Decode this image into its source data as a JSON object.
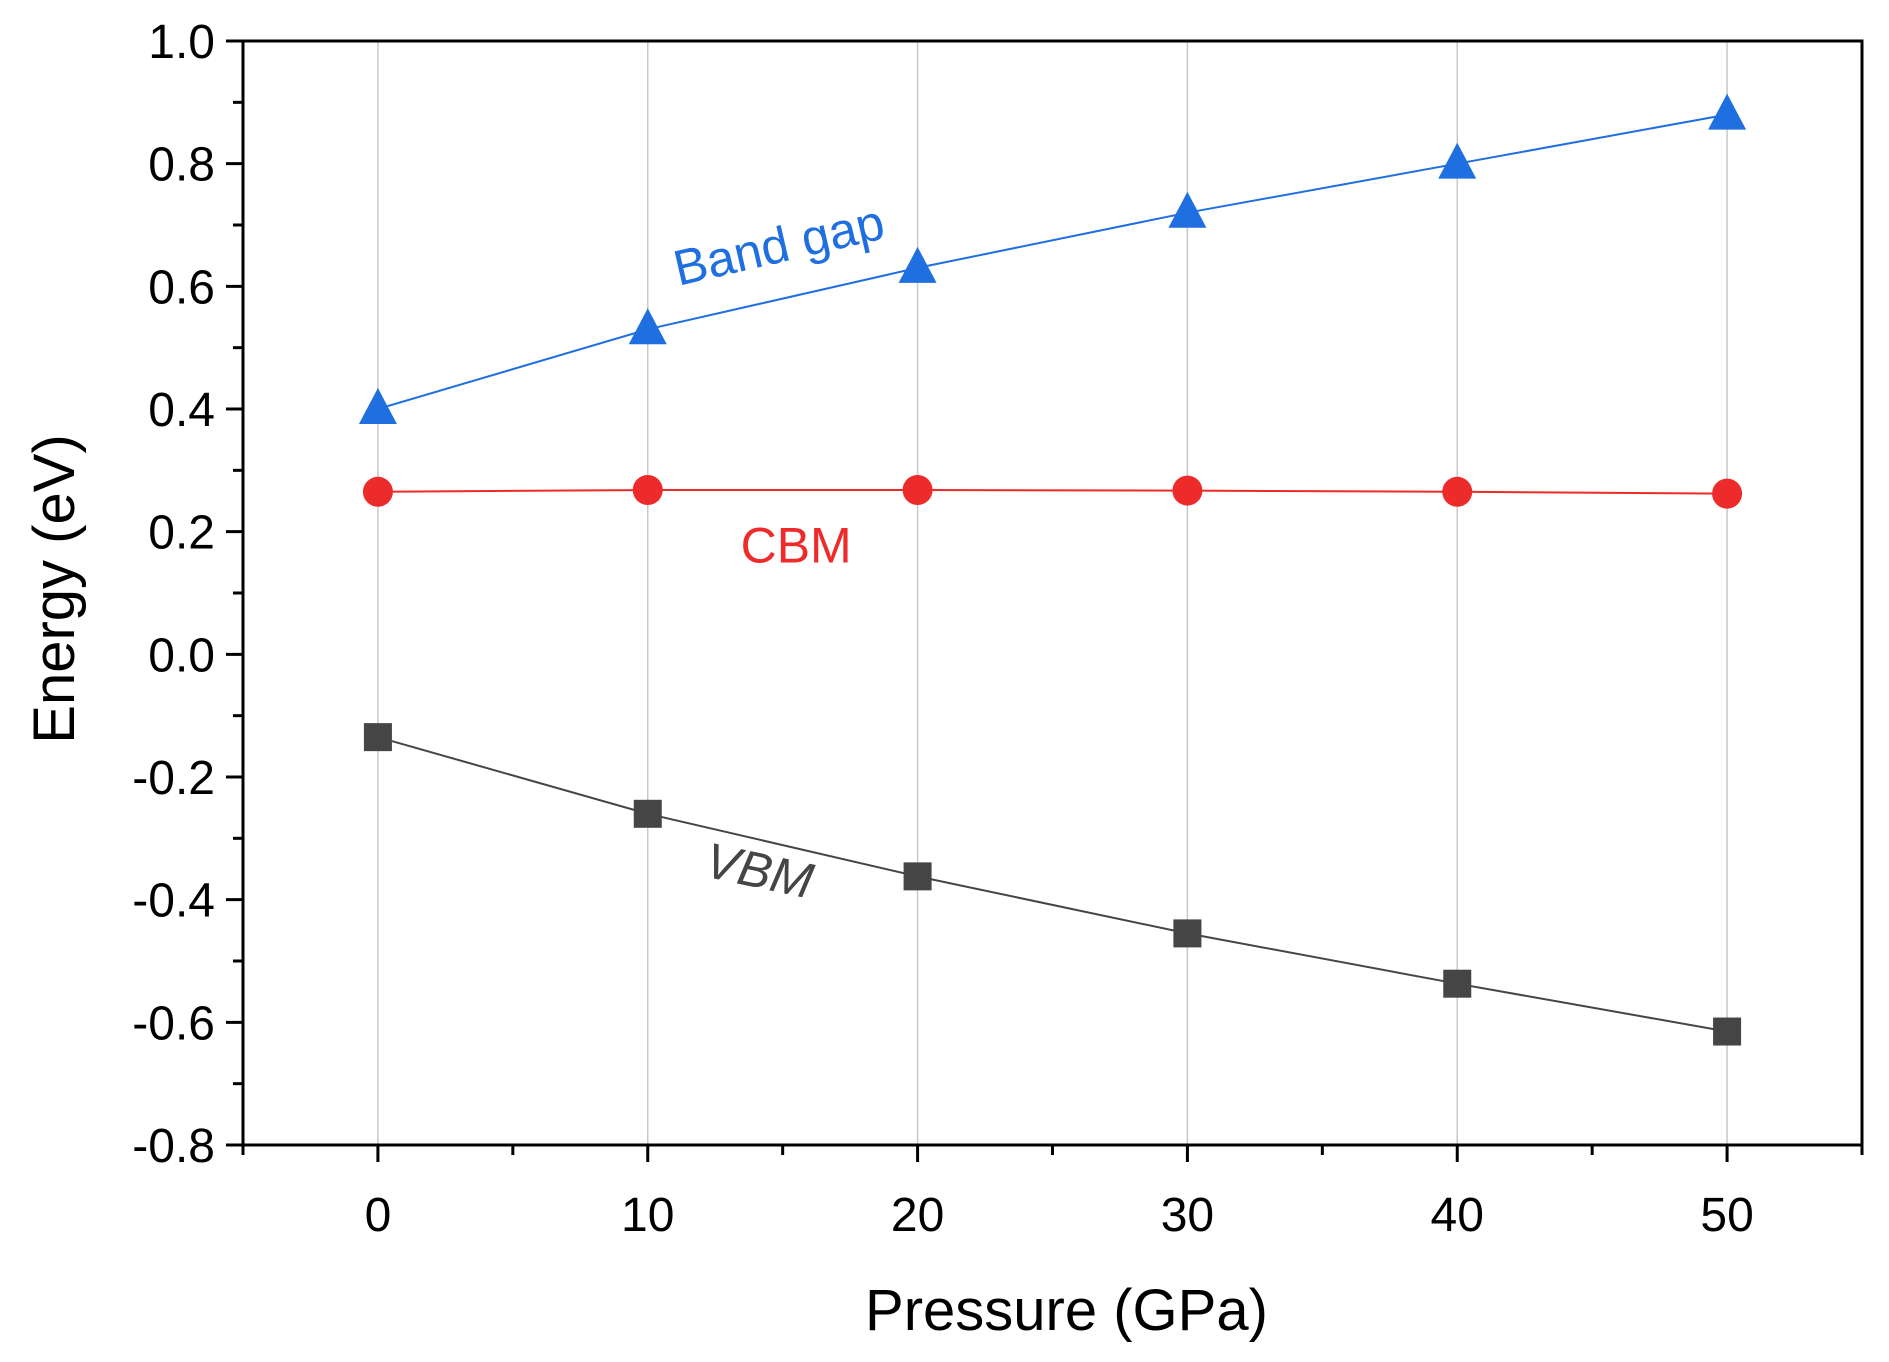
{
  "chart_data": {
    "type": "line",
    "title": "",
    "xlabel": "Pressure (GPa)",
    "ylabel": "Energy (eV)",
    "xlim": [
      -5,
      55
    ],
    "ylim": [
      -0.8,
      1.0
    ],
    "x": [
      0,
      10,
      20,
      30,
      40,
      50
    ],
    "xticks": [
      0,
      10,
      20,
      30,
      40,
      50
    ],
    "xtick_labels": [
      "0",
      "10",
      "20",
      "30",
      "40",
      "50"
    ],
    "yticks": [
      -0.8,
      -0.6,
      -0.4,
      -0.2,
      0.0,
      0.2,
      0.4,
      0.6,
      0.8,
      1.0
    ],
    "ytick_labels": [
      "-0.8",
      "-0.6",
      "-0.4",
      "-0.2",
      "0.0",
      "0.2",
      "0.4",
      "0.6",
      "0.8",
      "1.0"
    ],
    "grid": "vertical",
    "legend": "none",
    "series": [
      {
        "name": "Band gap",
        "label": "Band gap",
        "color": "#1f6fe0",
        "marker": "triangle",
        "values": [
          0.4,
          0.53,
          0.63,
          0.72,
          0.8,
          0.88
        ]
      },
      {
        "name": "CBM",
        "label": "CBM",
        "color": "#ee2b2b",
        "marker": "circle",
        "values": [
          0.265,
          0.268,
          0.268,
          0.267,
          0.265,
          0.262
        ]
      },
      {
        "name": "VBM",
        "label": "VBM",
        "color": "#454545",
        "marker": "square",
        "values": [
          -0.135,
          -0.26,
          -0.362,
          -0.455,
          -0.537,
          -0.615
        ]
      }
    ]
  }
}
